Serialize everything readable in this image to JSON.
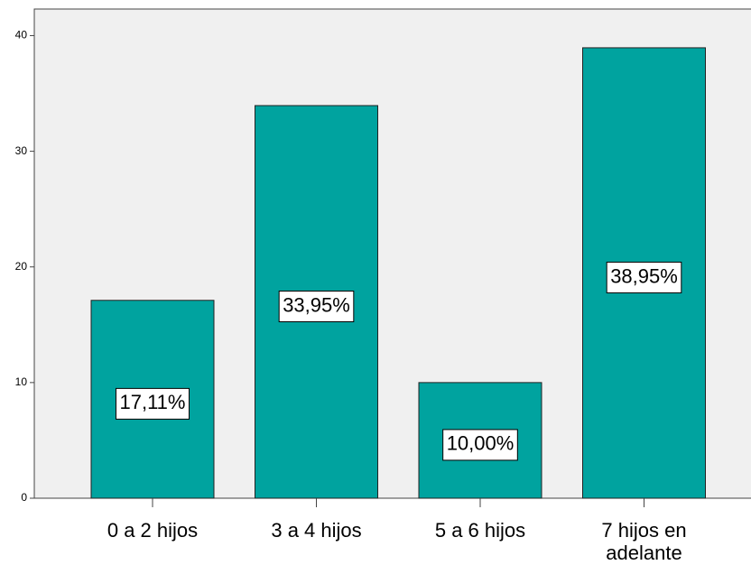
{
  "chart_data": {
    "type": "bar",
    "categories": [
      "0 a 2 hijos",
      "3 a 4 hijos",
      "5 a 6 hijos",
      "7 hijos en adelante"
    ],
    "values": [
      17.11,
      33.95,
      10.0,
      38.95
    ],
    "value_labels": [
      "17,11%",
      "33,95%",
      "10,00%",
      "38,95%"
    ],
    "color": "#00a39f",
    "ylim": [
      0,
      42.3
    ],
    "yticks": [
      0,
      10,
      20,
      30,
      40
    ],
    "grid": false
  }
}
